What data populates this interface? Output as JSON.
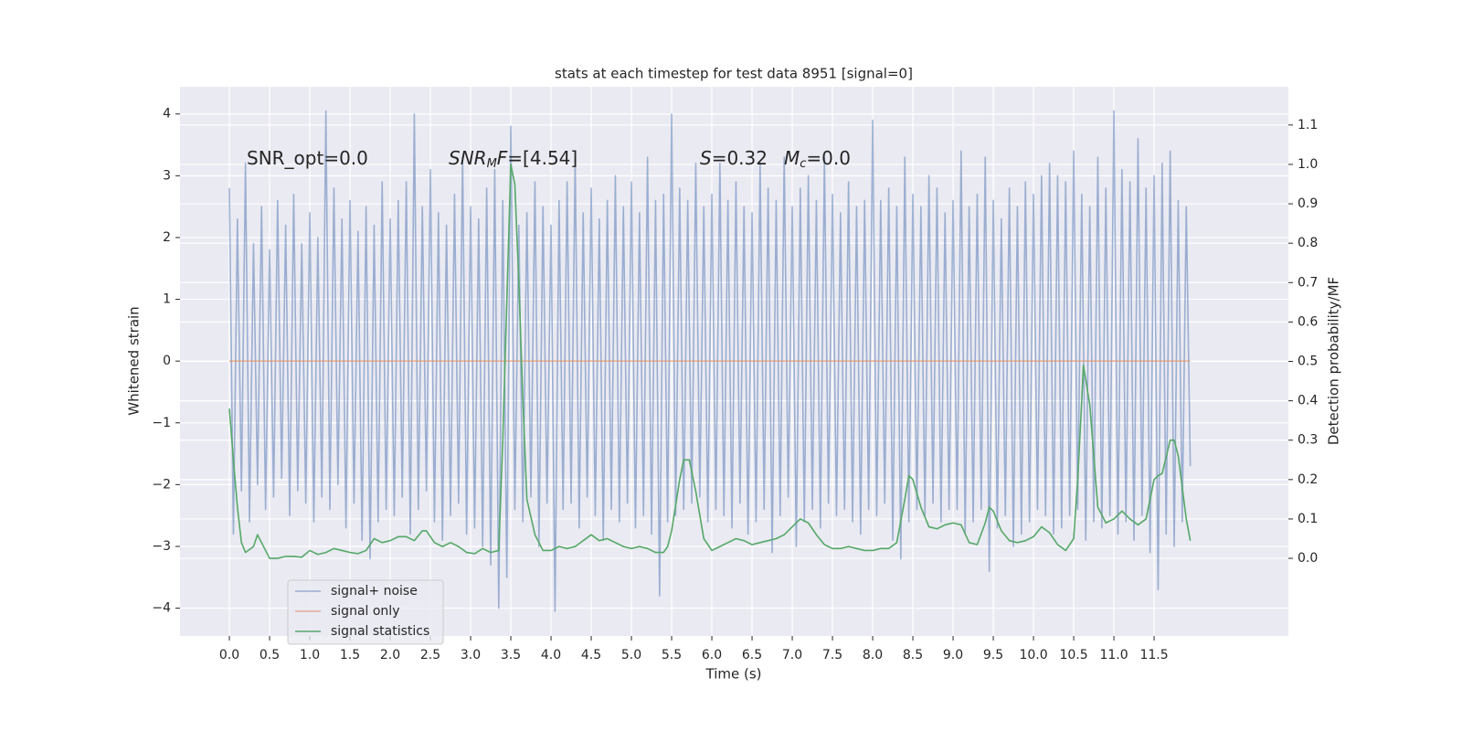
{
  "chart_data": {
    "type": "line",
    "title": "stats at each timestep for test data 8951 [signal=0]",
    "xlabel": "Time (s)",
    "ylabel": "Whitened strain",
    "y2label": "Detection probability/MF",
    "annotations": [
      [
        {
          "text": "SNR_opt=0.0"
        }
      ],
      [
        {
          "text": "SNR",
          "style": "italic"
        },
        {
          "text": "M",
          "style": "italic-sub"
        },
        {
          "text": "F",
          "style": "italic"
        },
        {
          "text": "=[4.54]"
        }
      ],
      [
        {
          "text": "S",
          "style": "italic"
        },
        {
          "text": "=0.32"
        }
      ],
      [
        {
          "text": "M",
          "style": "italic"
        },
        {
          "text": "c",
          "style": "italic-sub"
        },
        {
          "text": "=0.0"
        }
      ]
    ],
    "xlim": [
      -0.614,
      13.17
    ],
    "ylim": [
      -4.45,
      4.44
    ],
    "y2lim": [
      -0.197,
      1.197
    ],
    "xticks": [
      {
        "value": 0,
        "label": "0.0"
      },
      0.5,
      {
        "value": 1,
        "label": "1.0"
      },
      1.5,
      {
        "value": 2,
        "label": "2.0"
      },
      2.5,
      {
        "value": 3,
        "label": "3.0"
      },
      3.5,
      {
        "value": 4,
        "label": "4.0"
      },
      4.5,
      {
        "value": 5,
        "label": "5.0"
      },
      5.5,
      {
        "value": 6,
        "label": "6.0"
      },
      6.5,
      {
        "value": 7,
        "label": "7.0"
      },
      7.5,
      {
        "value": 8,
        "label": "8.0"
      },
      8.5,
      {
        "value": 9,
        "label": "9.0"
      },
      9.5,
      {
        "value": 10,
        "label": "10.0"
      },
      10.5,
      {
        "value": 11,
        "label": "11.0"
      },
      11.5
    ],
    "yticks": [
      {
        "value": -4,
        "label": "−4"
      },
      {
        "value": -3,
        "label": "−3"
      },
      {
        "value": -2,
        "label": "−2"
      },
      {
        "value": -1,
        "label": "−1"
      },
      0,
      1,
      2,
      3,
      4
    ],
    "y2ticks": [
      {
        "value": 0,
        "label": "0.0"
      },
      0.1,
      0.2,
      0.3,
      0.4,
      0.5,
      0.6,
      0.7,
      0.8,
      0.9,
      {
        "value": 1,
        "label": "1.0"
      },
      1.1
    ],
    "grid": true,
    "legend": "lower left",
    "series": [
      {
        "name": "signal+ noise",
        "color": "#4c72b0",
        "alpha": 0.5,
        "x": [
          0,
          0.05,
          0.1,
          0.15,
          0.2,
          0.25,
          0.3,
          0.35,
          0.4,
          0.45,
          0.5,
          0.55,
          0.6,
          0.65,
          0.7,
          0.75,
          0.8,
          0.85,
          0.9,
          0.95,
          1,
          1.05,
          1.1,
          1.15,
          1.2,
          1.25,
          1.3,
          1.35,
          1.4,
          1.45,
          1.5,
          1.55,
          1.6,
          1.65,
          1.7,
          1.75,
          1.8,
          1.85,
          1.9,
          1.95,
          2,
          2.05,
          2.1,
          2.15,
          2.2,
          2.25,
          2.3,
          2.35,
          2.4,
          2.45,
          2.5,
          2.55,
          2.6,
          2.65,
          2.7,
          2.75,
          2.8,
          2.85,
          2.9,
          2.95,
          3,
          3.05,
          3.1,
          3.15,
          3.2,
          3.25,
          3.3,
          3.35,
          3.4,
          3.45,
          3.5,
          3.55,
          3.6,
          3.65,
          3.7,
          3.75,
          3.8,
          3.85,
          3.9,
          3.95,
          4,
          4.05,
          4.1,
          4.15,
          4.2,
          4.25,
          4.3,
          4.35,
          4.4,
          4.45,
          4.5,
          4.55,
          4.6,
          4.65,
          4.7,
          4.75,
          4.8,
          4.85,
          4.9,
          4.95,
          5,
          5.05,
          5.1,
          5.15,
          5.2,
          5.25,
          5.3,
          5.35,
          5.4,
          5.45,
          5.5,
          5.55,
          5.6,
          5.65,
          5.7,
          5.75,
          5.8,
          5.85,
          5.9,
          5.95,
          6,
          6.05,
          6.1,
          6.15,
          6.2,
          6.25,
          6.3,
          6.35,
          6.4,
          6.45,
          6.5,
          6.55,
          6.6,
          6.65,
          6.7,
          6.75,
          6.8,
          6.85,
          6.9,
          6.95,
          7,
          7.05,
          7.1,
          7.15,
          7.2,
          7.25,
          7.3,
          7.35,
          7.4,
          7.45,
          7.5,
          7.55,
          7.6,
          7.65,
          7.7,
          7.75,
          7.8,
          7.85,
          7.9,
          7.95,
          8,
          8.05,
          8.1,
          8.15,
          8.2,
          8.25,
          8.3,
          8.35,
          8.4,
          8.45,
          8.5,
          8.55,
          8.6,
          8.65,
          8.7,
          8.75,
          8.8,
          8.85,
          8.9,
          8.95,
          9,
          9.05,
          9.1,
          9.15,
          9.2,
          9.25,
          9.3,
          9.35,
          9.4,
          9.45,
          9.5,
          9.55,
          9.6,
          9.65,
          9.7,
          9.75,
          9.8,
          9.85,
          9.9,
          9.95,
          10,
          10.05,
          10.1,
          10.15,
          10.2,
          10.25,
          10.3,
          10.35,
          10.4,
          10.45,
          10.5,
          10.55,
          10.6,
          10.65,
          10.7,
          10.75,
          10.8,
          10.85,
          10.9,
          10.95,
          11,
          11.05,
          11.1,
          11.15,
          11.2,
          11.25,
          11.3,
          11.35,
          11.4,
          11.45,
          11.5,
          11.55,
          11.6,
          11.65,
          11.7,
          11.75,
          11.8,
          11.85,
          11.9,
          11.95
        ],
        "values": [
          2.8,
          -2.8,
          2.3,
          -2.1,
          3.2,
          -2.6,
          1.9,
          -2.0,
          2.5,
          -2.4,
          1.8,
          -2.2,
          2.6,
          -1.9,
          2.2,
          -2.5,
          2.7,
          -2.1,
          1.9,
          -2.3,
          2.4,
          -2.6,
          2.0,
          -2.2,
          4.05,
          -2.4,
          2.8,
          -2.0,
          2.3,
          -2.7,
          2.6,
          -2.3,
          2.1,
          -2.9,
          2.5,
          -3.2,
          2.2,
          -2.6,
          2.9,
          -2.4,
          2.3,
          -2.5,
          2.6,
          -2.2,
          2.9,
          -2.8,
          4.0,
          -2.4,
          2.5,
          -2.1,
          3.1,
          -2.6,
          2.4,
          -2.9,
          2.2,
          -2.5,
          2.7,
          -2.3,
          3.3,
          -2.8,
          2.5,
          -2.7,
          2.3,
          -3.0,
          2.8,
          -3.3,
          3.1,
          -4.0,
          2.6,
          -3.5,
          3.8,
          -2.4,
          2.2,
          -2.6,
          2.4,
          -2.2,
          2.9,
          -3.0,
          2.5,
          -2.3,
          2.2,
          -4.05,
          2.6,
          -2.4,
          2.9,
          -2.3,
          3.3,
          -2.7,
          2.4,
          -2.2,
          2.8,
          -2.5,
          2.3,
          -2.9,
          2.6,
          -2.4,
          3.0,
          -2.6,
          2.5,
          -2.3,
          2.9,
          -2.7,
          2.4,
          -2.5,
          3.3,
          -2.8,
          2.6,
          -3.8,
          2.7,
          -2.6,
          4.0,
          -2.5,
          2.8,
          -2.4,
          2.6,
          -2.3,
          3.2,
          -2.2,
          2.5,
          -2.6,
          2.7,
          -2.4,
          3.2,
          -2.5,
          2.6,
          -2.7,
          2.9,
          -2.3,
          2.5,
          -2.8,
          2.4,
          -2.6,
          3.2,
          -2.4,
          2.8,
          -3.1,
          2.6,
          -2.5,
          3.3,
          -2.2,
          2.5,
          -3.0,
          2.8,
          -2.6,
          3.0,
          -2.4,
          2.6,
          -2.7,
          3.3,
          -2.3,
          2.7,
          -2.5,
          2.4,
          -2.4,
          2.9,
          -2.6,
          2.5,
          -2.8,
          2.6,
          -2.4,
          3.9,
          -2.5,
          2.6,
          -2.3,
          2.8,
          -2.9,
          2.5,
          -3.2,
          3.3,
          -2.6,
          2.7,
          -2.4,
          2.5,
          -2.5,
          3.0,
          -2.3,
          2.8,
          -2.6,
          2.4,
          -2.4,
          2.6,
          -2.4,
          3.4,
          -2.8,
          2.5,
          -2.6,
          2.7,
          -2.4,
          3.3,
          -3.4,
          2.6,
          -2.7,
          2.3,
          -2.5,
          2.8,
          -3.0,
          2.5,
          -2.8,
          2.9,
          -2.6,
          2.7,
          -2.4,
          3.0,
          -2.5,
          3.2,
          -2.8,
          3.0,
          -2.7,
          2.9,
          -2.5,
          3.4,
          -2.4,
          2.7,
          -2.9,
          2.5,
          -2.6,
          3.3,
          -2.7,
          2.8,
          -2.5,
          4.05,
          -2.8,
          3.1,
          -2.6,
          2.9,
          -2.9,
          3.6,
          -2.5,
          2.8,
          -3.1,
          3.0,
          -3.7,
          3.2,
          -2.8,
          3.4,
          -3.0,
          2.6,
          -2.6,
          2.5,
          -1.7
        ]
      },
      {
        "name": "signal only",
        "color": "#dd8452",
        "alpha": 0.6,
        "x": [
          0,
          11.95
        ],
        "values": [
          0,
          0
        ]
      },
      {
        "name": "signal statistics",
        "color": "#55a868",
        "alpha": 1,
        "axis": "y2",
        "x": [
          0,
          0.05,
          0.1,
          0.15,
          0.2,
          0.3,
          0.35,
          0.4,
          0.5,
          0.6,
          0.7,
          0.8,
          0.9,
          1.0,
          1.1,
          1.2,
          1.3,
          1.4,
          1.5,
          1.6,
          1.7,
          1.8,
          1.9,
          2.0,
          2.1,
          2.2,
          2.3,
          2.4,
          2.45,
          2.55,
          2.65,
          2.75,
          2.85,
          2.95,
          3.05,
          3.15,
          3.25,
          3.35,
          3.4,
          3.5,
          3.55,
          3.6,
          3.65,
          3.7,
          3.8,
          3.9,
          4.0,
          4.1,
          4.2,
          4.3,
          4.4,
          4.5,
          4.6,
          4.7,
          4.8,
          4.9,
          5.0,
          5.1,
          5.2,
          5.3,
          5.4,
          5.45,
          5.5,
          5.6,
          5.65,
          5.72,
          5.8,
          5.9,
          6.0,
          6.1,
          6.2,
          6.3,
          6.4,
          6.5,
          6.6,
          6.7,
          6.8,
          6.9,
          7.0,
          7.1,
          7.2,
          7.3,
          7.4,
          7.5,
          7.6,
          7.7,
          7.8,
          7.9,
          8.0,
          8.1,
          8.2,
          8.3,
          8.4,
          8.45,
          8.5,
          8.6,
          8.7,
          8.8,
          8.9,
          9.0,
          9.1,
          9.2,
          9.3,
          9.4,
          9.45,
          9.5,
          9.6,
          9.7,
          9.8,
          9.9,
          10.0,
          10.1,
          10.2,
          10.3,
          10.4,
          10.5,
          10.55,
          10.6,
          10.62,
          10.7,
          10.8,
          10.9,
          11.0,
          11.1,
          11.2,
          11.3,
          11.4,
          11.5,
          11.55,
          11.6,
          11.7,
          11.75,
          11.8,
          11.9,
          11.95
        ],
        "values": [
          0.38,
          0.25,
          0.13,
          0.04,
          0.015,
          0.03,
          0.06,
          0.04,
          0.0,
          0.0,
          0.005,
          0.005,
          0.003,
          0.02,
          0.01,
          0.015,
          0.025,
          0.02,
          0.015,
          0.012,
          0.02,
          0.05,
          0.04,
          0.045,
          0.055,
          0.055,
          0.045,
          0.07,
          0.07,
          0.04,
          0.03,
          0.04,
          0.03,
          0.015,
          0.012,
          0.025,
          0.015,
          0.02,
          0.3,
          1.0,
          0.95,
          0.7,
          0.4,
          0.15,
          0.06,
          0.02,
          0.02,
          0.03,
          0.025,
          0.03,
          0.045,
          0.06,
          0.045,
          0.05,
          0.04,
          0.03,
          0.025,
          0.03,
          0.025,
          0.015,
          0.015,
          0.03,
          0.07,
          0.2,
          0.25,
          0.25,
          0.17,
          0.05,
          0.02,
          0.03,
          0.04,
          0.05,
          0.045,
          0.035,
          0.04,
          0.045,
          0.05,
          0.06,
          0.08,
          0.1,
          0.09,
          0.06,
          0.035,
          0.025,
          0.025,
          0.03,
          0.025,
          0.02,
          0.02,
          0.025,
          0.025,
          0.04,
          0.15,
          0.21,
          0.2,
          0.13,
          0.08,
          0.075,
          0.085,
          0.09,
          0.085,
          0.04,
          0.035,
          0.09,
          0.13,
          0.12,
          0.07,
          0.045,
          0.04,
          0.045,
          0.055,
          0.08,
          0.065,
          0.035,
          0.02,
          0.05,
          0.2,
          0.4,
          0.49,
          0.39,
          0.13,
          0.09,
          0.1,
          0.12,
          0.1,
          0.085,
          0.1,
          0.2,
          0.21,
          0.215,
          0.3,
          0.3,
          0.26,
          0.1,
          0.045
        ]
      }
    ]
  }
}
